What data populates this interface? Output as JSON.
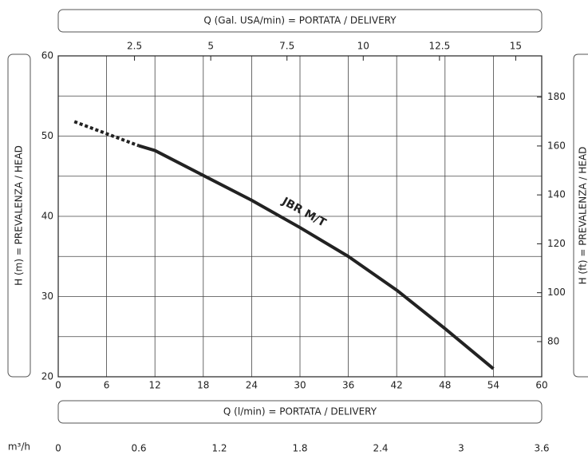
{
  "chart_data": {
    "type": "line",
    "top_title": "Q (Gal. USA/min) = PORTATA / DELIVERY",
    "x_label": "Q (l/min) = PORTATA / DELIVERY",
    "y_label": "H (m) = PREVALENZA / HEAD",
    "y2_label": "H (ft) = PREVALENZA / HEAD",
    "x3_label": "m³/h",
    "annotation": "JBR M/T",
    "xlim": [
      0,
      60
    ],
    "xticks": [
      0,
      6,
      12,
      18,
      24,
      30,
      36,
      42,
      48,
      54,
      60
    ],
    "x2lim": [
      0,
      15.852
    ],
    "x2ticks": [
      2.5,
      5,
      7.5,
      10,
      12.5,
      15
    ],
    "x3lim": [
      0,
      3.6
    ],
    "x3ticks": [
      0,
      0.6,
      1.2,
      1.8,
      2.4,
      3,
      3.6
    ],
    "ylim": [
      20,
      60
    ],
    "yticks": [
      20,
      30,
      40,
      50,
      60
    ],
    "yminor": [
      25,
      35,
      45,
      55
    ],
    "y2lim": [
      65.62,
      196.85
    ],
    "y2ticks": [
      80,
      100,
      120,
      140,
      160,
      180
    ],
    "grid": true,
    "series": [
      {
        "style": "dotted",
        "color": "#222",
        "x": [
          2,
          10
        ],
        "values": [
          51.8,
          48.8
        ]
      },
      {
        "style": "solid",
        "color": "#222",
        "x": [
          10,
          12,
          18,
          24,
          30,
          36,
          42,
          48,
          54
        ],
        "values": [
          48.8,
          48.2,
          45.1,
          42,
          38.6,
          35,
          30.8,
          26,
          21
        ]
      }
    ]
  }
}
